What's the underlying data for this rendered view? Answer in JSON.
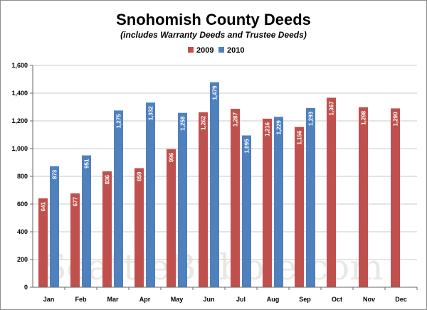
{
  "chart_data": {
    "type": "bar",
    "title": "Snohomish County Deeds",
    "subtitle": "(includes Warranty Deeds and Trustee Deeds)",
    "categories": [
      "Jan",
      "Feb",
      "Mar",
      "Apr",
      "May",
      "Jun",
      "Jul",
      "Aug",
      "Sep",
      "Oct",
      "Nov",
      "Dec"
    ],
    "series": [
      {
        "name": "2009",
        "color": "#c0504d",
        "values": [
          641,
          677,
          836,
          859,
          996,
          1262,
          1287,
          1216,
          1156,
          1367,
          1298,
          1290
        ],
        "labels": [
          "641",
          "677",
          "836",
          "859",
          "996",
          "1,262",
          "1,287",
          "1,216",
          "1,156",
          "1,367",
          "1,298",
          "1,290"
        ]
      },
      {
        "name": "2010",
        "color": "#4f81bd",
        "values": [
          873,
          951,
          1275,
          1332,
          1258,
          1479,
          1095,
          1229,
          1293,
          null,
          null,
          null
        ],
        "labels": [
          "873",
          "951",
          "1,275",
          "1,332",
          "1,258",
          "1,479",
          "1,095",
          "1,229",
          "1,293",
          null,
          null,
          null
        ]
      }
    ],
    "yticks": [
      0,
      200,
      400,
      600,
      800,
      1000,
      1200,
      1400,
      1600
    ],
    "ytick_labels": [
      "0",
      "200",
      "400",
      "600",
      "800",
      "1,000",
      "1,200",
      "1,400",
      "1,600"
    ],
    "ylim": [
      0,
      1600
    ],
    "xlabel": "",
    "ylabel": "",
    "grid": true,
    "legend_position": "top-center",
    "watermark": "SeattleBubble.com"
  }
}
